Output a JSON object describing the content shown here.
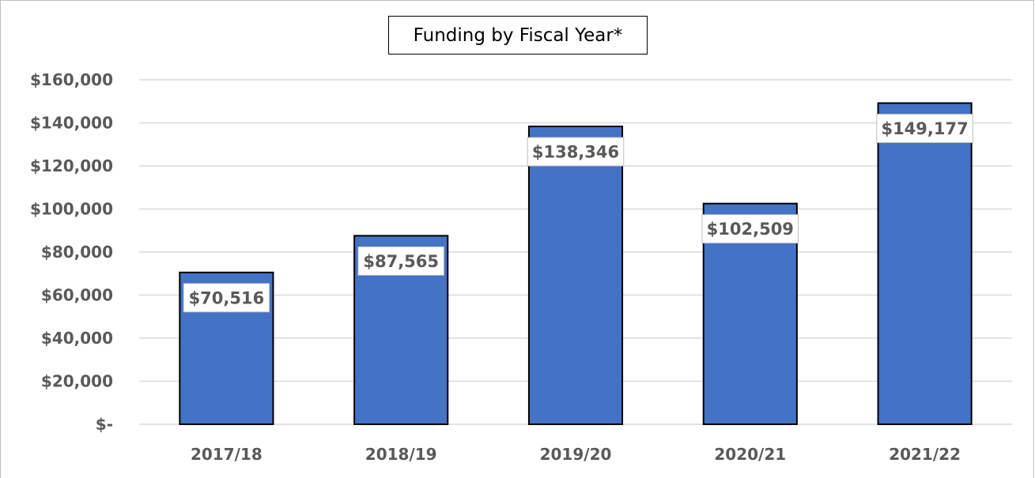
{
  "chart_data": {
    "type": "bar",
    "title": "Funding by Fiscal Year*",
    "xlabel": "",
    "ylabel": "",
    "categories": [
      "2017/18",
      "2018/19",
      "2019/20",
      "2020/21",
      "2021/22"
    ],
    "values": [
      70516,
      87565,
      138346,
      102509,
      149177
    ],
    "data_labels": [
      "$70,516",
      "$87,565",
      "$138,346",
      "$102,509",
      "$149,177"
    ],
    "ylim": [
      0,
      160000
    ],
    "yticks": [
      0,
      20000,
      40000,
      60000,
      80000,
      100000,
      120000,
      140000,
      160000
    ],
    "ytick_labels": [
      "$-",
      "$20,000",
      "$40,000",
      "$60,000",
      "$80,000",
      "$100,000",
      "$120,000",
      "$140,000",
      "$160,000"
    ],
    "grid": true,
    "legend": "none",
    "colors": {
      "bar": "#4472c4",
      "bar_edge": "#000000",
      "gridline": "#d9d9d9",
      "label_text": "#595959"
    }
  }
}
